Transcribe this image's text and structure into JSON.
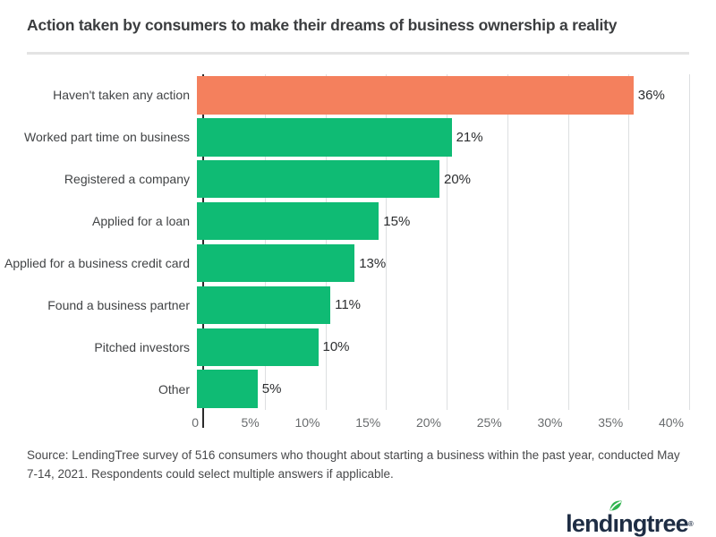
{
  "header": {
    "title": "Action taken by consumers to make their dreams of business ownership a reality"
  },
  "chart_data": {
    "type": "bar",
    "orientation": "horizontal",
    "title": "Action taken by consumers to make their dreams of business ownership a reality",
    "categories": [
      "Haven't taken any action",
      "Worked part time on business",
      "Registered a company",
      "Applied for a loan",
      "Applied for a business credit card",
      "Found a business partner",
      "Pitched investors",
      "Other"
    ],
    "values": [
      36,
      21,
      20,
      15,
      13,
      11,
      10,
      5
    ],
    "value_labels": [
      "36%",
      "21%",
      "20%",
      "15%",
      "13%",
      "11%",
      "10%",
      "5%"
    ],
    "xlabel": "",
    "ylabel": "",
    "xlim": [
      0,
      40
    ],
    "xticks": [
      "0",
      "5%",
      "10%",
      "15%",
      "20%",
      "25%",
      "30%",
      "35%",
      "40%"
    ],
    "grid": "vertical-only",
    "legend": "none",
    "highlight_index": 0,
    "colors": {
      "bar_default": "#0fbb74",
      "bar_highlight": "#f4805d",
      "gridline": "#dddfe1",
      "axis_line": "#2b2b2b"
    }
  },
  "footer": {
    "source": "Source: LendingTree survey of 516 consumers who thought about starting a business within the past year, conducted May 7-14, 2021. Respondents could select multiple answers if applicable.",
    "logo": {
      "brand": "lendingtree",
      "text_pre": "lend",
      "text_i": "ı",
      "text_post": "ngtree",
      "reg_mark": "®",
      "navy": "#1e2d44",
      "leaf_green": "#2fb44f"
    }
  }
}
